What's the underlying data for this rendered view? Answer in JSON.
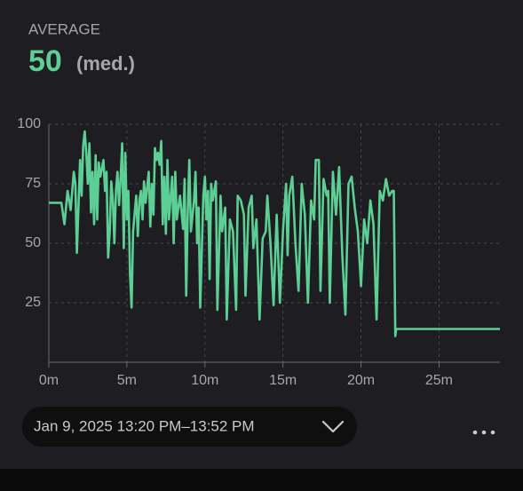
{
  "header": {
    "label": "AVERAGE",
    "value": 50,
    "unit": "(med.)"
  },
  "date_range": "Jan 9, 2025 13:20 PM–13:52 PM",
  "chart_data": {
    "type": "line",
    "color": "#5ccf95",
    "x": [
      0,
      0.8,
      1.0,
      1.2,
      1.4,
      1.6,
      1.7,
      1.8,
      2.0,
      2.1,
      2.2,
      2.3,
      2.4,
      2.5,
      2.6,
      2.7,
      2.8,
      2.9,
      3.0,
      3.1,
      3.2,
      3.3,
      3.5,
      3.6,
      3.7,
      3.8,
      3.9,
      4.0,
      4.1,
      4.2,
      4.3,
      4.4,
      4.5,
      4.6,
      4.7,
      4.8,
      4.9,
      5.0,
      5.1,
      5.2,
      5.3,
      5.4,
      5.6,
      5.7,
      5.8,
      5.9,
      6.0,
      6.1,
      6.2,
      6.4,
      6.5,
      6.6,
      6.7,
      6.8,
      6.9,
      7.0,
      7.1,
      7.2,
      7.3,
      7.4,
      7.5,
      7.6,
      7.7,
      7.9,
      8.0,
      8.1,
      8.2,
      8.4,
      8.6,
      8.7,
      8.8,
      8.9,
      9.0,
      9.1,
      9.3,
      9.4,
      9.5,
      9.6,
      9.7,
      9.9,
      10.0,
      10.1,
      10.2,
      10.3,
      10.4,
      10.5,
      10.7,
      10.8,
      11.0,
      11.1,
      11.3,
      11.4,
      11.6,
      11.8,
      12.0,
      12.1,
      12.3,
      12.5,
      12.6,
      12.8,
      13.0,
      13.1,
      13.3,
      13.5,
      13.7,
      13.9,
      14.0,
      14.2,
      14.4,
      14.6,
      14.8,
      15.0,
      15.2,
      15.3,
      15.4,
      15.6,
      15.8,
      16.0,
      16.2,
      16.4,
      16.6,
      16.8,
      17.0,
      17.1,
      17.3,
      17.4,
      17.6,
      17.8,
      17.9,
      18.0,
      18.2,
      18.4,
      18.6,
      18.8,
      19.0,
      19.2,
      19.4,
      19.6,
      19.8,
      20.0,
      20.2,
      20.4,
      20.6,
      20.8,
      21.0,
      21.2,
      21.4,
      21.6,
      21.8,
      22.0,
      22.1,
      22.2,
      22.25,
      28.9
    ],
    "values": [
      67,
      67,
      58,
      72,
      64,
      80,
      75,
      46,
      85,
      70,
      91,
      97,
      88,
      75,
      92,
      63,
      80,
      58,
      87,
      60,
      84,
      78,
      85,
      72,
      80,
      44,
      55,
      76,
      68,
      50,
      72,
      80,
      66,
      78,
      92,
      48,
      88,
      60,
      72,
      37,
      23,
      55,
      70,
      53,
      68,
      72,
      60,
      76,
      67,
      80,
      57,
      75,
      62,
      90,
      85,
      88,
      83,
      93,
      58,
      78,
      54,
      85,
      60,
      78,
      50,
      80,
      60,
      70,
      56,
      77,
      28,
      62,
      85,
      55,
      68,
      80,
      50,
      65,
      23,
      70,
      78,
      60,
      72,
      35,
      75,
      68,
      76,
      22,
      70,
      55,
      65,
      18,
      60,
      55,
      22,
      70,
      68,
      62,
      28,
      65,
      70,
      48,
      60,
      18,
      52,
      55,
      70,
      50,
      24,
      62,
      25,
      55,
      75,
      45,
      70,
      78,
      50,
      30,
      75,
      62,
      25,
      68,
      60,
      85,
      85,
      30,
      77,
      70,
      72,
      25,
      80,
      62,
      82,
      45,
      20,
      75,
      78,
      65,
      55,
      32,
      60,
      50,
      68,
      58,
      18,
      72,
      68,
      77,
      70,
      72,
      72,
      11,
      14,
      14
    ],
    "xlim": [
      0,
      28.9
    ],
    "ylim": [
      0,
      100
    ],
    "xticks": [
      {
        "value": 0,
        "label": "0m"
      },
      {
        "value": 5,
        "label": "5m"
      },
      {
        "value": 10,
        "label": "10m"
      },
      {
        "value": 15,
        "label": "15m"
      },
      {
        "value": 20,
        "label": "20m"
      },
      {
        "value": 25,
        "label": "25m"
      }
    ],
    "yticks": [
      25,
      50,
      75,
      100
    ],
    "grid": true
  }
}
